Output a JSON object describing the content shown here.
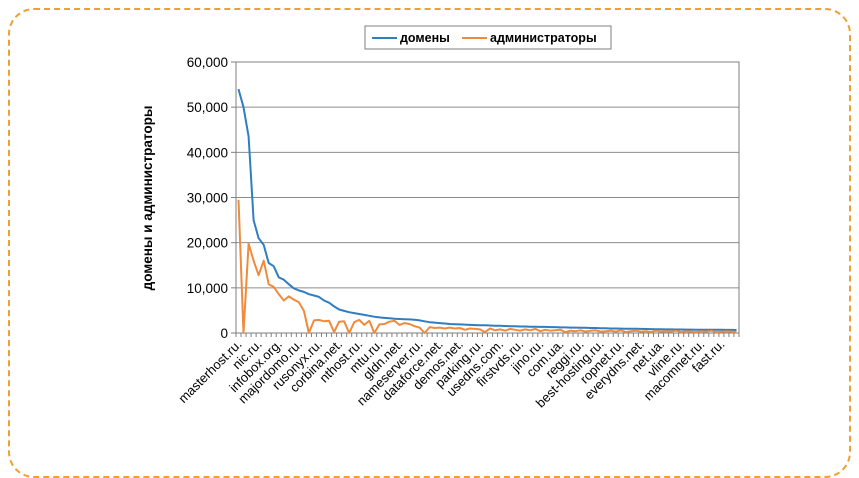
{
  "chart_data": {
    "type": "line",
    "title": "",
    "xlabel": "",
    "ylabel": "домены и администраторы",
    "ylim": [
      0,
      60000
    ],
    "yticks": [
      "0",
      "10,000",
      "20,000",
      "30,000",
      "40,000",
      "50,000",
      "60,000"
    ],
    "ytick_values": [
      0,
      10000,
      20000,
      30000,
      40000,
      50000,
      60000
    ],
    "grid": "horizontal",
    "legend": "top-center",
    "n_points": 100,
    "category_labels": [
      "masterhost.ru.",
      "nic.ru.",
      "infobox.org.",
      "majordomo.ru.",
      "rusonyx.ru.",
      "corbina.net.",
      "nthost.ru.",
      "mtu.ru.",
      "gldn.net.",
      "nameserver.ru.",
      "dataforce.net.",
      "demos.net.",
      "parking.ru.",
      "usedns.com.",
      "firstvds.ru.",
      "jino.ru.",
      "com.ua.",
      "reggi.ru.",
      "best-hosting.ru.",
      "ropnet.ru.",
      "everydns.net.",
      "net.ua.",
      "vline.ru.",
      "macomnet.ru.",
      "fast.ru."
    ],
    "series": [
      {
        "name": "домены",
        "color": "#2e7ec1",
        "values": [
          54000,
          50000,
          43500,
          25000,
          21000,
          19500,
          15500,
          14800,
          12300,
          11800,
          10800,
          9900,
          9400,
          9100,
          8600,
          8300,
          8000,
          7200,
          6700,
          5900,
          5200,
          4900,
          4600,
          4400,
          4200,
          4000,
          3800,
          3600,
          3450,
          3350,
          3250,
          3150,
          3100,
          3050,
          3000,
          2950,
          2800,
          2600,
          2400,
          2300,
          2200,
          2100,
          2000,
          1950,
          1900,
          1850,
          1800,
          1750,
          1700,
          1700,
          1650,
          1600,
          1600,
          1550,
          1500,
          1500,
          1450,
          1450,
          1400,
          1400,
          1350,
          1350,
          1300,
          1300,
          1250,
          1250,
          1200,
          1200,
          1150,
          1150,
          1100,
          1100,
          1050,
          1050,
          1000,
          1000,
          980,
          960,
          940,
          920,
          900,
          880,
          860,
          840,
          820,
          800,
          790,
          780,
          770,
          760,
          750,
          740,
          730,
          720,
          710,
          700,
          700,
          690,
          680,
          670
        ]
      },
      {
        "name": "администраторы",
        "color": "#f08a3c",
        "values": [
          29500,
          0,
          19800,
          16000,
          12800,
          16000,
          10800,
          10200,
          8600,
          7200,
          8100,
          7400,
          6800,
          4900,
          0,
          2800,
          2900,
          2600,
          2700,
          200,
          2500,
          2600,
          0,
          2400,
          2900,
          1800,
          2700,
          0,
          1900,
          2000,
          2500,
          2700,
          1800,
          2200,
          2000,
          1500,
          1200,
          0,
          1300,
          1100,
          1200,
          1000,
          1200,
          1000,
          1100,
          700,
          1000,
          900,
          800,
          200,
          1000,
          600,
          800,
          500,
          900,
          700,
          500,
          800,
          600,
          900,
          400,
          700,
          500,
          600,
          700,
          200,
          500,
          400,
          600,
          300,
          500,
          600,
          300,
          400,
          500,
          300,
          600,
          200,
          400,
          500,
          300,
          400,
          200,
          500,
          300,
          400,
          300,
          500,
          200,
          400,
          300,
          200,
          400,
          300,
          500,
          200,
          300,
          400,
          300,
          200
        ]
      }
    ]
  }
}
